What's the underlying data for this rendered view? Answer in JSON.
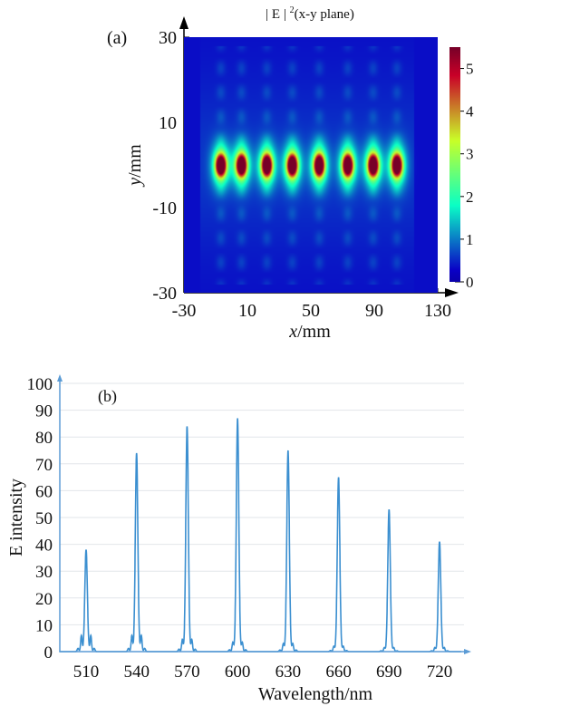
{
  "chart_data": [
    {
      "type": "heatmap",
      "panel_label": "(a)",
      "title_main": "| E | ",
      "title_sup": "2",
      "title_rest": "(x-y plane)",
      "xlabel_var": "x",
      "xlabel_unit": "/mm",
      "ylabel_var": "y",
      "ylabel_unit": "/mm",
      "xlim": [
        -30,
        130
      ],
      "ylim": [
        -30,
        30
      ],
      "xticks": [
        "-30",
        "10",
        "50",
        "90",
        "130"
      ],
      "yticks": [
        "30",
        "10",
        "-10",
        "-30"
      ],
      "colormap": "jet",
      "color_range": [
        0,
        5.5
      ],
      "colorbar_ticks": [
        "0",
        "1",
        "2",
        "3",
        "4",
        "5"
      ],
      "hotspots_x_mm": [
        -7,
        6,
        22,
        38,
        55,
        73,
        89,
        104
      ],
      "hotspots_y_mm": 0,
      "hotspot_peak": 5
    },
    {
      "type": "line",
      "panel_label": "(b)",
      "xlabel": "Wavelength/nm",
      "ylabel": "E intensity",
      "xlim": [
        494,
        735
      ],
      "ylim": [
        0,
        100
      ],
      "xticks": [
        "510",
        "540",
        "570",
        "600",
        "630",
        "660",
        "690",
        "720"
      ],
      "yticks": [
        "0",
        "10",
        "20",
        "30",
        "40",
        "50",
        "60",
        "70",
        "80",
        "90",
        "100"
      ],
      "grid": true,
      "line_color": "#3b8fd0",
      "peaks": [
        {
          "wavelength": 510,
          "intensity": 38,
          "sidelobe": 6
        },
        {
          "wavelength": 540,
          "intensity": 74,
          "sidelobe": 6
        },
        {
          "wavelength": 570,
          "intensity": 84,
          "sidelobe": 4.5
        },
        {
          "wavelength": 600,
          "intensity": 87,
          "sidelobe": 3.5
        },
        {
          "wavelength": 630,
          "intensity": 75,
          "sidelobe": 3
        },
        {
          "wavelength": 660,
          "intensity": 65,
          "sidelobe": 2
        },
        {
          "wavelength": 690,
          "intensity": 53,
          "sidelobe": 1.5
        },
        {
          "wavelength": 720,
          "intensity": 41,
          "sidelobe": 1.5
        }
      ]
    }
  ]
}
